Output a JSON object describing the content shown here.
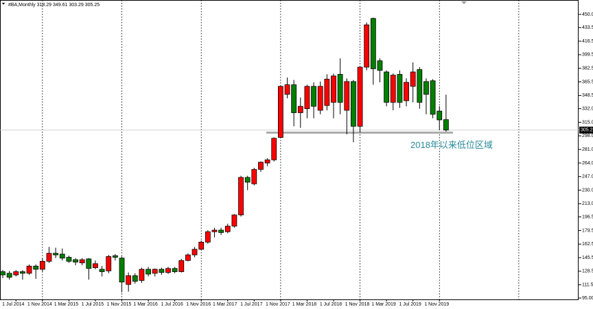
{
  "chart_data": {
    "type": "candlestick",
    "title": "#BA,Monthly  318.29 349.61 303.29 305.25",
    "up_color": "#ff0000",
    "down_color": "#008000",
    "categories": [
      null,
      null,
      "1 Jul 2014",
      null,
      null,
      null,
      "1 Nov 2014",
      null,
      null,
      null,
      "1 Mar 2015",
      null,
      null,
      null,
      "1 Jul 2015",
      null,
      null,
      null,
      "1 Nov 2015",
      null,
      null,
      null,
      "1 Mar 2016",
      null,
      null,
      null,
      "1 Jul 2016",
      null,
      null,
      null,
      "1 Nov 2016",
      null,
      null,
      null,
      "1 Mar 2017",
      null,
      null,
      null,
      "1 Jul 2017",
      null,
      null,
      null,
      "1 Nov 2017",
      null,
      null,
      null,
      "1 Mar 2018",
      null,
      null,
      null,
      "1 Jul 2018",
      null,
      null,
      null,
      "1 Nov 2018",
      null,
      null,
      null,
      "1 Mar 2019",
      null,
      null,
      null,
      "1 Jul 2019",
      null,
      null,
      null,
      "1 Nov 2019",
      null
    ],
    "open": [
      128,
      126,
      124,
      128,
      126,
      135,
      131,
      141,
      151,
      150,
      146,
      143,
      139,
      144,
      133,
      131,
      129,
      148,
      145,
      112,
      123,
      117,
      131,
      126,
      131,
      127,
      132,
      128,
      142,
      149,
      156,
      165,
      178,
      180,
      178,
      185,
      199,
      246,
      238,
      256,
      264,
      268,
      296,
      350,
      362,
      327,
      332,
      360,
      330,
      336,
      340,
      375,
      330,
      366,
      310,
      384,
      445,
      392,
      378,
      340,
      375,
      342,
      360,
      381,
      366,
      367,
      329,
      318.29
    ],
    "high": [
      130,
      129,
      130,
      130,
      137,
      137,
      145,
      159,
      158,
      157,
      148,
      145,
      145,
      145,
      142,
      135,
      149,
      150,
      147,
      127,
      126,
      133,
      134,
      132,
      133,
      134,
      134,
      144,
      151,
      159,
      167,
      180,
      183,
      183,
      188,
      200,
      248,
      248,
      258,
      266,
      270,
      296,
      361,
      371,
      368,
      346,
      362,
      365,
      366,
      375,
      376,
      395,
      370,
      368,
      385,
      440,
      446,
      395,
      380,
      376,
      380,
      370,
      390,
      384,
      370,
      369,
      335,
      349.61
    ],
    "low": [
      120,
      118,
      122,
      118,
      124,
      119,
      128,
      139,
      145,
      142,
      139,
      136,
      136,
      118,
      131,
      122,
      126,
      142,
      102,
      103,
      113,
      114,
      122,
      122,
      124,
      125,
      126,
      127,
      141,
      146,
      155,
      163,
      171,
      174,
      176,
      183,
      197,
      230,
      236,
      253,
      260,
      266,
      295,
      345,
      310,
      308,
      320,
      320,
      325,
      330,
      320,
      325,
      300,
      290,
      302,
      380,
      362,
      365,
      335,
      330,
      333,
      335,
      340,
      332,
      325,
      320,
      305,
      303.29
    ],
    "close": [
      124,
      121,
      128,
      126,
      135,
      131,
      141,
      151,
      149,
      145,
      141,
      140,
      143,
      132,
      138,
      128,
      147,
      146,
      115,
      123,
      116,
      131,
      125,
      131,
      127,
      132,
      128,
      142,
      149,
      156,
      165,
      178,
      180,
      177,
      185,
      199,
      246,
      240,
      256,
      265,
      268,
      295,
      360,
      362,
      327,
      335,
      360,
      335,
      360,
      369,
      373,
      340,
      366,
      310,
      384,
      437,
      382,
      380,
      340,
      374,
      340,
      365,
      378,
      340,
      350,
      325,
      318,
      305.25
    ],
    "ylim": [
      93.28,
      468.06
    ],
    "yticks": [
      450.05,
      433.55,
      416.55,
      399.55,
      382.55,
      365.55,
      348.55,
      {
        "value": 332,
        "label": "332.00"
      },
      {
        "value": 315,
        "label": "315.00"
      },
      {
        "value": 298,
        "label": "298.00"
      },
      {
        "value": 281,
        "label": "281.00"
      },
      {
        "value": 264,
        "label": "264.00"
      },
      {
        "value": 247,
        "label": "247.00"
      },
      {
        "value": 230,
        "label": "230.00"
      },
      213.05,
      196.55,
      179.55,
      162.55,
      145.55,
      128.55,
      111.55,
      {
        "value": 95,
        "label": "95.00"
      }
    ],
    "annotation": {
      "text": "2018年以来低位区域",
      "level": 302
    }
  }
}
